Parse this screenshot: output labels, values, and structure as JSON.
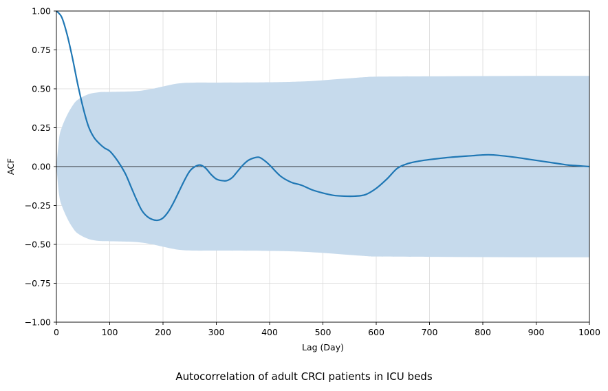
{
  "caption": "Autocorrelation of adult CRCI patients in ICU beds",
  "colors": {
    "line": "#1f77b4",
    "band": "#c6daec",
    "grid": "#d9d9d9",
    "zero_line": "#000000"
  },
  "chart_data": {
    "type": "line",
    "title": "",
    "xlabel": "Lag (Day)",
    "ylabel": "ACF",
    "xlim": [
      0,
      1000
    ],
    "ylim": [
      -1.0,
      1.0
    ],
    "grid": true,
    "x_ticks": [
      0,
      100,
      200,
      300,
      400,
      500,
      600,
      700,
      800,
      900,
      1000
    ],
    "y_ticks": [
      "−1.00",
      "−0.75",
      "−0.50",
      "−0.25",
      "0.00",
      "0.25",
      "0.50",
      "0.75",
      "1.00"
    ],
    "y_tick_values": [
      -1.0,
      -0.75,
      -0.5,
      -0.25,
      0.0,
      0.25,
      0.5,
      0.75,
      1.0
    ],
    "zero_line": true,
    "series": [
      {
        "kind": "line",
        "x": [
          0,
          10,
          20,
          30,
          40,
          50,
          60,
          70,
          80,
          90,
          100,
          110,
          120,
          130,
          140,
          150,
          160,
          170,
          180,
          190,
          200,
          210,
          220,
          230,
          240,
          250,
          260,
          270,
          280,
          290,
          300,
          310,
          320,
          330,
          340,
          350,
          360,
          370,
          380,
          390,
          400,
          420,
          440,
          460,
          480,
          500,
          520,
          540,
          560,
          580,
          600,
          620,
          640,
          660,
          680,
          700,
          740,
          780,
          800,
          820,
          860,
          900,
          940,
          960,
          980,
          1000
        ],
        "y": [
          1.0,
          0.96,
          0.85,
          0.7,
          0.53,
          0.38,
          0.26,
          0.19,
          0.15,
          0.12,
          0.1,
          0.06,
          0.01,
          -0.05,
          -0.13,
          -0.21,
          -0.28,
          -0.32,
          -0.34,
          -0.345,
          -0.33,
          -0.29,
          -0.23,
          -0.16,
          -0.09,
          -0.03,
          0.0,
          0.01,
          -0.01,
          -0.05,
          -0.08,
          -0.09,
          -0.09,
          -0.07,
          -0.03,
          0.01,
          0.04,
          0.055,
          0.06,
          0.04,
          0.01,
          -0.06,
          -0.1,
          -0.12,
          -0.15,
          -0.17,
          -0.185,
          -0.19,
          -0.19,
          -0.18,
          -0.14,
          -0.08,
          -0.01,
          0.02,
          0.035,
          0.045,
          0.06,
          0.07,
          0.075,
          0.075,
          0.06,
          0.04,
          0.02,
          0.01,
          0.005,
          0.0
        ]
      },
      {
        "kind": "band",
        "x": [
          0,
          5,
          10,
          20,
          30,
          40,
          60,
          80,
          100,
          150,
          180,
          200,
          230,
          260,
          300,
          400,
          460,
          500,
          540,
          580,
          600,
          700,
          800,
          900,
          1000
        ],
        "upper": [
          0.0,
          0.18,
          0.25,
          0.33,
          0.39,
          0.43,
          0.465,
          0.478,
          0.48,
          0.485,
          0.5,
          0.515,
          0.535,
          0.54,
          0.54,
          0.542,
          0.547,
          0.555,
          0.565,
          0.575,
          0.578,
          0.58,
          0.582,
          0.583,
          0.583
        ],
        "lower": [
          0.0,
          -0.18,
          -0.25,
          -0.33,
          -0.39,
          -0.43,
          -0.465,
          -0.478,
          -0.48,
          -0.485,
          -0.5,
          -0.515,
          -0.535,
          -0.54,
          -0.54,
          -0.542,
          -0.547,
          -0.555,
          -0.565,
          -0.575,
          -0.578,
          -0.58,
          -0.582,
          -0.583,
          -0.583
        ]
      }
    ]
  }
}
